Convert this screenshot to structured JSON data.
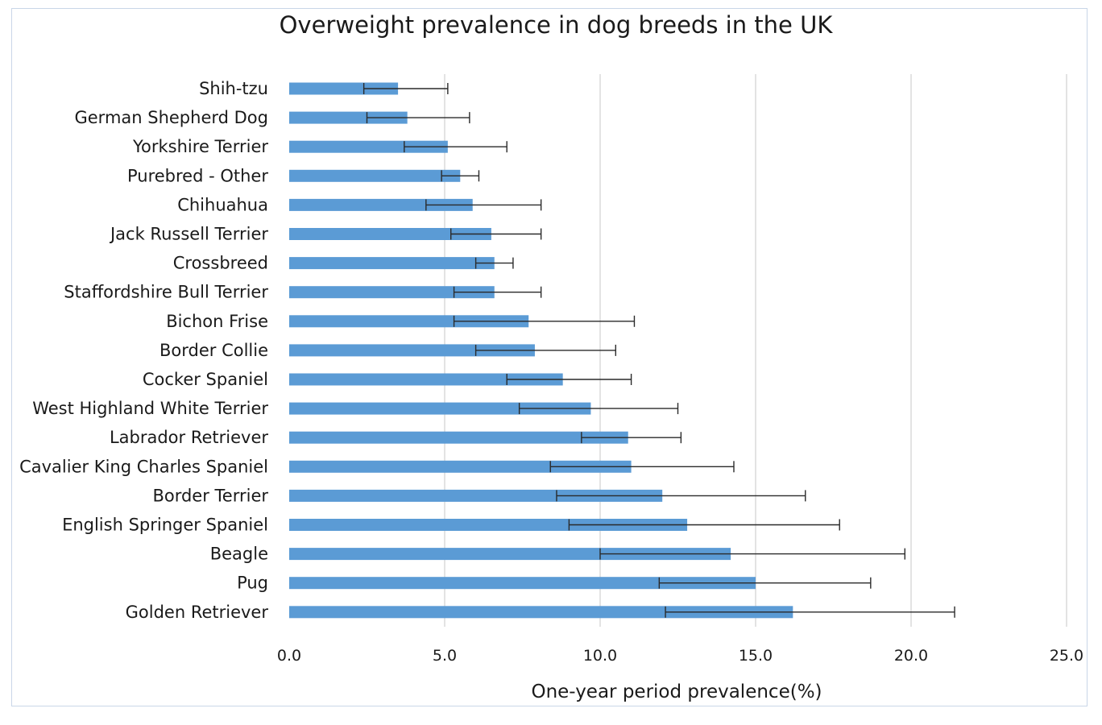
{
  "chart_data": {
    "type": "bar",
    "orientation": "horizontal",
    "title": "Overweight prevalence in dog breeds in the UK",
    "xlabel": "One-year period prevalence(%)",
    "ylabel": "",
    "xlim": [
      0,
      25
    ],
    "xticks": [
      0,
      5,
      10,
      15,
      20,
      25
    ],
    "xtick_labels": [
      "0.0",
      "5.0",
      "10.0",
      "15.0",
      "20.0",
      "25.0"
    ],
    "grid": "vertical",
    "legend": "none",
    "bar_color": "#5b9bd5",
    "error_color": "#2a2a2a",
    "categories": [
      "Shih-tzu",
      "German Shepherd Dog",
      "Yorkshire Terrier",
      "Purebred - Other",
      "Chihuahua",
      "Jack Russell Terrier",
      "Crossbreed",
      "Staffordshire Bull Terrier",
      "Bichon Frise",
      "Border Collie",
      "Cocker Spaniel",
      "West Highland White Terrier",
      "Labrador Retriever",
      "Cavalier King Charles Spaniel",
      "Border Terrier",
      "English Springer Spaniel",
      "Beagle",
      "Pug",
      "Golden Retriever"
    ],
    "values": [
      3.5,
      3.8,
      5.1,
      5.5,
      5.9,
      6.5,
      6.6,
      6.6,
      7.7,
      7.9,
      8.8,
      9.7,
      10.9,
      11.0,
      12.0,
      12.8,
      14.2,
      15.0,
      16.2
    ],
    "ci_lower": [
      2.4,
      2.5,
      3.7,
      4.9,
      4.4,
      5.2,
      6.0,
      5.3,
      5.3,
      6.0,
      7.0,
      7.4,
      9.4,
      8.4,
      8.6,
      9.0,
      10.0,
      11.9,
      12.1
    ],
    "ci_upper": [
      5.1,
      5.8,
      7.0,
      6.1,
      8.1,
      8.1,
      7.2,
      8.1,
      11.1,
      10.5,
      11.0,
      12.5,
      12.6,
      14.3,
      16.6,
      17.7,
      19.8,
      18.7,
      21.4
    ]
  }
}
